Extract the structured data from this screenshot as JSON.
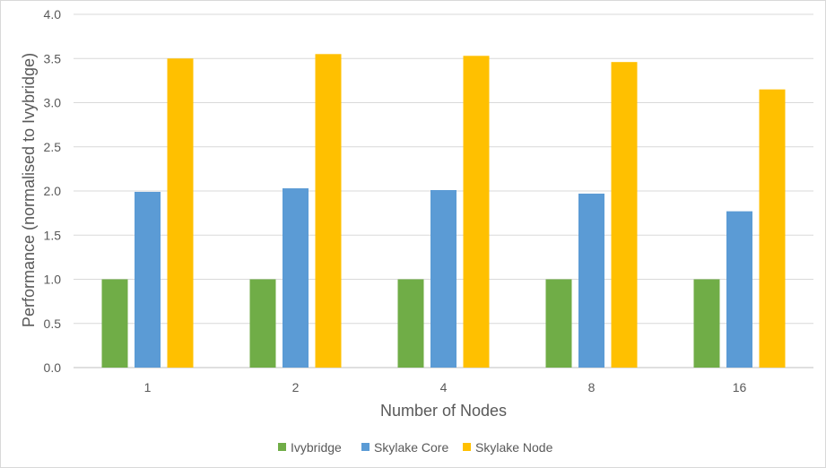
{
  "chart_data": {
    "type": "bar",
    "title": "",
    "xlabel": "Number of Nodes",
    "ylabel": "Performance (normalised to Ivybridge)",
    "categories": [
      "1",
      "2",
      "4",
      "8",
      "16"
    ],
    "ylim": [
      0,
      4.0
    ],
    "yticks": [
      "0.0",
      "0.5",
      "1.0",
      "1.5",
      "2.0",
      "2.5",
      "3.0",
      "3.5",
      "4.0"
    ],
    "grid": true,
    "legend_position": "bottom",
    "series": [
      {
        "name": "Ivybridge",
        "color": "#70ad47",
        "values": [
          1.0,
          1.0,
          1.0,
          1.0,
          1.0
        ]
      },
      {
        "name": "Skylake Core",
        "color": "#5b9bd5",
        "values": [
          1.99,
          2.03,
          2.01,
          1.97,
          1.77
        ]
      },
      {
        "name": "Skylake Node",
        "color": "#ffc000",
        "values": [
          3.5,
          3.55,
          3.53,
          3.46,
          3.15
        ]
      }
    ]
  }
}
